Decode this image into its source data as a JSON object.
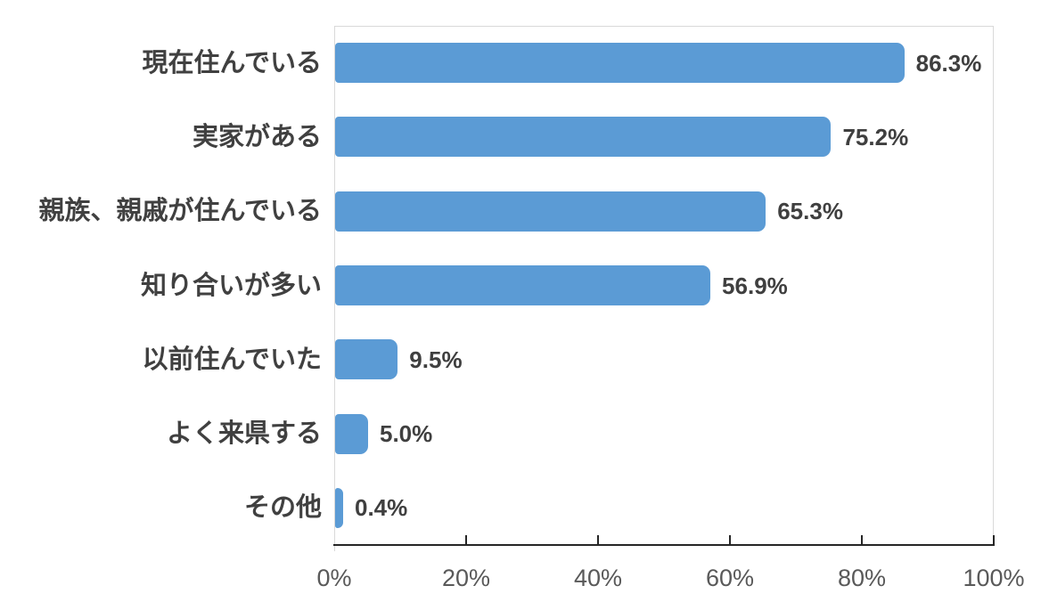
{
  "chart_data": {
    "type": "bar",
    "orientation": "horizontal",
    "title": "",
    "xlabel": "",
    "ylabel": "",
    "categories": [
      "現在住んでいる",
      "実家がある",
      "親族、親戚が住んでいる",
      "知り合いが多い",
      "以前住んでいた",
      "よく来県する",
      "その他"
    ],
    "values": [
      86.3,
      75.2,
      65.3,
      56.9,
      9.5,
      5.0,
      0.4
    ],
    "value_labels": [
      "86.3%",
      "75.2%",
      "65.3%",
      "56.9%",
      "9.5%",
      "5.0%",
      "0.4%"
    ],
    "xlim": [
      0,
      100
    ],
    "x_ticks": [
      0,
      20,
      40,
      60,
      80,
      100
    ],
    "x_tick_labels": [
      "0%",
      "20%",
      "40%",
      "60%",
      "80%",
      "100%"
    ],
    "grid": false,
    "legend": null,
    "bar_color": "#5B9BD5"
  },
  "colors": {
    "bar": "#5B9BD5",
    "axis_line": "#262626",
    "plot_border": "#D9D9D9",
    "category_label": "#404040",
    "value_label": "#3F3F3F",
    "tick_label": "#595959",
    "background": "#FFFFFF"
  }
}
